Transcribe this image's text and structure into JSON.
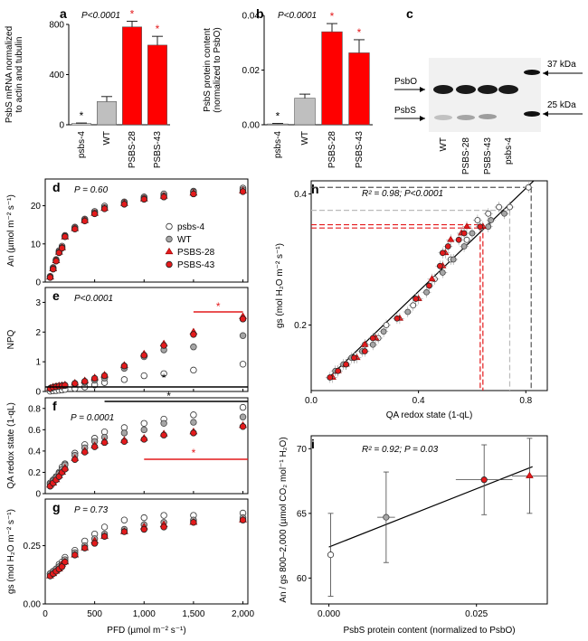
{
  "colors": {
    "red": "#e41a1c",
    "grey": "#a6a6a6",
    "dark": "#000000"
  },
  "chart_data": [
    {
      "panel": "a",
      "type": "bar",
      "annotation": "P<0.0001",
      "ylabel_lines": [
        "PsbS mRNA normalized",
        "to actin and tubulin"
      ],
      "ylim": [
        0,
        800
      ],
      "yticks": [
        "0",
        "400",
        "800"
      ],
      "categories": [
        "psbs-4",
        "WT",
        "PSBS-28",
        "PSBS-43"
      ],
      "values": [
        10,
        185,
        780,
        635
      ],
      "errors": [
        4,
        40,
        45,
        70
      ],
      "bar_colors": [
        "#ffffff",
        "#bfbfbf",
        "#ff0000",
        "#ff0000"
      ],
      "stars": [
        {
          "i": 0,
          "t": "*",
          "c": "#000000"
        },
        {
          "i": 2,
          "t": "*",
          "c": "#e41a1c"
        },
        {
          "i": 3,
          "t": "*",
          "c": "#e41a1c"
        }
      ]
    },
    {
      "panel": "b",
      "type": "bar",
      "annotation": "P<0.0001",
      "ylabel_lines": [
        "PsbS protein content",
        "(normalized to PsbO)"
      ],
      "ylim": [
        0,
        0.04
      ],
      "yticks": [
        "0.00",
        "0.02",
        "0.04"
      ],
      "categories": [
        "psbs-4",
        "WT",
        "PSBS-28",
        "PSBS-43"
      ],
      "values": [
        0.0003,
        0.0097,
        0.034,
        0.0263
      ],
      "errors": [
        0.0002,
        0.0015,
        0.003,
        0.0048
      ],
      "bar_colors": [
        "#ffffff",
        "#bfbfbf",
        "#ff0000",
        "#ff0000"
      ],
      "stars": [
        {
          "i": 0,
          "t": "*",
          "c": "#000000"
        },
        {
          "i": 2,
          "t": "*",
          "c": "#e41a1c"
        },
        {
          "i": 3,
          "t": "*",
          "c": "#e41a1c"
        }
      ]
    },
    {
      "panel": "c",
      "type": "table",
      "blot_labels": [
        "PsbO",
        "PsbS"
      ],
      "ladder": [
        "37 kDa",
        "25 kDa"
      ],
      "lanes": [
        "WT",
        "PSBS-28",
        "PSBS-43",
        "psbs-4"
      ]
    },
    {
      "panel": "d",
      "type": "scatter",
      "annotation": "P = 0.60",
      "ylabel": "An (µmol m⁻² s⁻¹)",
      "ylim": [
        0,
        27
      ],
      "yticks": [
        "0",
        "10",
        "20"
      ],
      "xlim": [
        0,
        2050
      ],
      "x": [
        50,
        80,
        110,
        140,
        170,
        200,
        300,
        400,
        500,
        600,
        800,
        1000,
        1200,
        1500,
        2000
      ],
      "series": [
        {
          "name": "psbs-4",
          "values": [
            1.5,
            3.8,
            5.9,
            8.2,
            9.4,
            12.2,
            14.4,
            16.5,
            18.5,
            19.9,
            21.0,
            22.3,
            23.1,
            23.8,
            24.6
          ]
        },
        {
          "name": "WT",
          "values": [
            1.4,
            3.6,
            5.7,
            7.9,
            9.1,
            12.0,
            14.2,
            16.3,
            18.2,
            19.5,
            20.8,
            22.0,
            22.7,
            23.6,
            24.2
          ]
        },
        {
          "name": "PSBS-28",
          "values": [
            1.3,
            3.5,
            5.6,
            7.8,
            9.0,
            11.8,
            14.0,
            16.1,
            18.0,
            19.3,
            20.6,
            21.8,
            22.5,
            23.3,
            23.9
          ]
        },
        {
          "name": "PSBS-43",
          "values": [
            1.2,
            3.4,
            5.5,
            7.7,
            8.9,
            11.9,
            13.9,
            16.0,
            17.9,
            19.2,
            20.4,
            21.7,
            22.3,
            23.1,
            23.7
          ]
        }
      ],
      "legend": [
        "psbs-4",
        "WT",
        "PSBS-28",
        "PSBS-43"
      ]
    },
    {
      "panel": "e",
      "type": "scatter",
      "annotation": "P<0.0001",
      "ylabel": "NPQ",
      "ylim": [
        0,
        3.5
      ],
      "yticks": [
        "0",
        "1",
        "2",
        "3"
      ],
      "x": [
        50,
        80,
        110,
        140,
        170,
        200,
        300,
        400,
        500,
        600,
        800,
        1000,
        1200,
        1500,
        2000
      ],
      "series": [
        {
          "name": "psbs-4",
          "values": [
            0.01,
            0.02,
            0.03,
            0.04,
            0.05,
            0.07,
            0.1,
            0.15,
            0.22,
            0.3,
            0.4,
            0.53,
            0.6,
            0.72,
            0.92
          ]
        },
        {
          "name": "WT",
          "values": [
            0.1,
            0.14,
            0.16,
            0.18,
            0.19,
            0.2,
            0.25,
            0.3,
            0.38,
            0.45,
            0.78,
            1.17,
            1.4,
            1.5,
            1.88
          ]
        },
        {
          "name": "PSBS-28",
          "values": [
            0.11,
            0.15,
            0.17,
            0.19,
            0.2,
            0.22,
            0.28,
            0.36,
            0.46,
            0.55,
            0.88,
            1.26,
            1.6,
            2.0,
            2.52
          ]
        },
        {
          "name": "PSBS-43",
          "values": [
            0.1,
            0.14,
            0.16,
            0.18,
            0.19,
            0.21,
            0.27,
            0.34,
            0.44,
            0.53,
            0.86,
            1.22,
            1.55,
            1.92,
            2.44
          ]
        }
      ]
    },
    {
      "panel": "f",
      "type": "scatter",
      "annotation": "P = 0.0001",
      "ylabel": "QA redox state (1-qL)",
      "ylim": [
        0,
        0.9
      ],
      "yticks": [
        "0",
        "0.2",
        "0.4",
        "0.6",
        "0.8"
      ],
      "x": [
        50,
        80,
        110,
        140,
        170,
        200,
        300,
        400,
        500,
        600,
        800,
        1000,
        1200,
        1500,
        2000
      ],
      "series": [
        {
          "name": "psbs-4",
          "values": [
            0.1,
            0.13,
            0.16,
            0.2,
            0.25,
            0.28,
            0.38,
            0.46,
            0.52,
            0.58,
            0.62,
            0.66,
            0.7,
            0.74,
            0.81
          ]
        },
        {
          "name": "WT",
          "values": [
            0.09,
            0.12,
            0.15,
            0.19,
            0.23,
            0.27,
            0.36,
            0.43,
            0.49,
            0.53,
            0.57,
            0.6,
            0.66,
            0.67,
            0.72
          ]
        },
        {
          "name": "PSBS-28",
          "values": [
            0.08,
            0.1,
            0.13,
            0.17,
            0.2,
            0.24,
            0.33,
            0.4,
            0.45,
            0.49,
            0.5,
            0.52,
            0.56,
            0.58,
            0.64
          ]
        },
        {
          "name": "PSBS-43",
          "values": [
            0.07,
            0.1,
            0.13,
            0.16,
            0.2,
            0.23,
            0.32,
            0.39,
            0.44,
            0.48,
            0.49,
            0.51,
            0.55,
            0.57,
            0.63
          ]
        }
      ]
    },
    {
      "panel": "g",
      "type": "scatter",
      "annotation": "P = 0.73",
      "ylabel": "gs (mol H₂O m⁻² s⁻¹)",
      "ylim": [
        0,
        0.45
      ],
      "yticks": [
        "0.00",
        "0.25"
      ],
      "xlabel": "PFD (µmol m⁻² s⁻¹)",
      "xticks": [
        "0",
        "500",
        "1,000",
        "1,500",
        "2,000"
      ],
      "x": [
        50,
        80,
        110,
        140,
        170,
        200,
        300,
        400,
        500,
        600,
        800,
        1000,
        1200,
        1500,
        2000
      ],
      "series": [
        {
          "name": "psbs-4",
          "values": [
            0.13,
            0.14,
            0.15,
            0.17,
            0.18,
            0.2,
            0.23,
            0.27,
            0.3,
            0.33,
            0.36,
            0.37,
            0.38,
            0.38,
            0.39
          ]
        },
        {
          "name": "WT",
          "values": [
            0.13,
            0.14,
            0.15,
            0.16,
            0.17,
            0.19,
            0.22,
            0.25,
            0.28,
            0.3,
            0.32,
            0.34,
            0.35,
            0.36,
            0.37
          ]
        },
        {
          "name": "PSBS-28",
          "values": [
            0.12,
            0.13,
            0.14,
            0.15,
            0.17,
            0.18,
            0.21,
            0.24,
            0.27,
            0.29,
            0.31,
            0.33,
            0.34,
            0.35,
            0.36
          ]
        },
        {
          "name": "PSBS-43",
          "values": [
            0.12,
            0.13,
            0.14,
            0.15,
            0.16,
            0.18,
            0.21,
            0.24,
            0.26,
            0.29,
            0.31,
            0.32,
            0.33,
            0.35,
            0.36
          ]
        }
      ]
    },
    {
      "panel": "h",
      "type": "scatter",
      "annotation": "R² = 0.98; P<0.0001",
      "xlabel": "QA redox state (1-qL)",
      "ylabel": "gs (mol H₂O m⁻² s⁻¹)",
      "xlim": [
        0,
        0.88
      ],
      "ylim": [
        0.1,
        0.42
      ],
      "xticks": [
        "0.0",
        "0.4",
        "0.8"
      ],
      "yticks": [
        "0.2",
        "0.4"
      ],
      "fit": {
        "slope": 0.393,
        "intercept": 0.094
      },
      "series": [
        {
          "name": "psbs-4",
          "x": [
            0.1,
            0.13,
            0.16,
            0.2,
            0.25,
            0.28,
            0.38,
            0.46,
            0.52,
            0.58,
            0.62,
            0.66,
            0.7,
            0.74,
            0.81
          ],
          "y": [
            0.13,
            0.14,
            0.15,
            0.17,
            0.18,
            0.2,
            0.23,
            0.27,
            0.3,
            0.33,
            0.36,
            0.37,
            0.38,
            0.38,
            0.41
          ]
        },
        {
          "name": "WT",
          "x": [
            0.09,
            0.12,
            0.15,
            0.19,
            0.23,
            0.27,
            0.36,
            0.43,
            0.49,
            0.53,
            0.57,
            0.6,
            0.66,
            0.67,
            0.72
          ],
          "y": [
            0.13,
            0.14,
            0.15,
            0.16,
            0.17,
            0.19,
            0.22,
            0.25,
            0.28,
            0.3,
            0.32,
            0.34,
            0.35,
            0.36,
            0.37
          ]
        },
        {
          "name": "PSBS-28",
          "x": [
            0.08,
            0.1,
            0.13,
            0.17,
            0.2,
            0.24,
            0.33,
            0.4,
            0.45,
            0.49,
            0.5,
            0.52,
            0.56,
            0.58,
            0.64
          ],
          "y": [
            0.12,
            0.13,
            0.14,
            0.15,
            0.17,
            0.18,
            0.21,
            0.24,
            0.27,
            0.29,
            0.31,
            0.33,
            0.34,
            0.35,
            0.35
          ]
        },
        {
          "name": "PSBS-43",
          "x": [
            0.07,
            0.1,
            0.13,
            0.16,
            0.2,
            0.23,
            0.32,
            0.39,
            0.44,
            0.48,
            0.49,
            0.51,
            0.55,
            0.57,
            0.63
          ],
          "y": [
            0.12,
            0.13,
            0.14,
            0.15,
            0.16,
            0.18,
            0.21,
            0.24,
            0.26,
            0.29,
            0.31,
            0.32,
            0.33,
            0.34,
            0.35
          ]
        }
      ],
      "dashed_refs": [
        {
          "x": 0.82,
          "y": 0.41,
          "color": "#555555"
        },
        {
          "x": 0.74,
          "y": 0.375,
          "color": "#bbbbbb"
        },
        {
          "x": 0.64,
          "y": 0.353,
          "color": "#e41a1c"
        },
        {
          "x": 0.63,
          "y": 0.348,
          "color": "#e41a1c"
        }
      ]
    },
    {
      "panel": "i",
      "type": "scatter",
      "annotation": "R² = 0.92; P = 0.03",
      "xlabel": "PsbS protein content (normalized to PsbO)",
      "ylabel": "An / gs 800–2,000 (µmol CO₂ mol⁻¹ H₂O)",
      "xlim": [
        -0.003,
        0.037
      ],
      "ylim": [
        58,
        71
      ],
      "xticks": [
        "0.000",
        "0.025"
      ],
      "yticks": [
        "60",
        "65",
        "70"
      ],
      "fit": {
        "slope": 180,
        "intercept": 62.4
      },
      "points": [
        {
          "name": "psbs-4",
          "x": 0.0003,
          "y": 61.8,
          "xerr": 0.0002,
          "yerr": 3.2
        },
        {
          "name": "WT",
          "x": 0.0097,
          "y": 64.7,
          "xerr": 0.0015,
          "yerr": 3.5
        },
        {
          "name": "PSBS-43",
          "x": 0.0263,
          "y": 67.6,
          "xerr": 0.0048,
          "yerr": 2.7
        },
        {
          "name": "PSBS-28",
          "x": 0.034,
          "y": 67.9,
          "xerr": 0.003,
          "yerr": 2.9
        }
      ]
    }
  ]
}
